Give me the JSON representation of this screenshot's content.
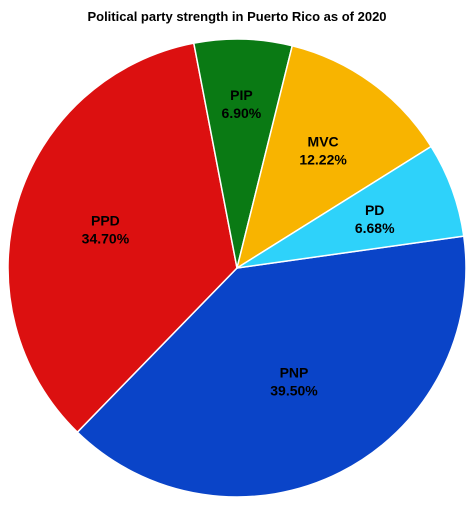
{
  "chart_data": {
    "type": "pie",
    "title": "Political party strength in Puerto Rico as of 2020",
    "slices": [
      {
        "name": "PNP",
        "value": 39.5,
        "value_label": "39.50%",
        "color": "#0a44c8"
      },
      {
        "name": "PPD",
        "value": 34.7,
        "value_label": "34.70%",
        "color": "#dc1010"
      },
      {
        "name": "PIP",
        "value": 6.9,
        "value_label": "6.90%",
        "color": "#0a7a14"
      },
      {
        "name": "MVC",
        "value": 12.22,
        "value_label": "12.22%",
        "color": "#f8b400"
      },
      {
        "name": "PD",
        "value": 6.68,
        "value_label": "6.68%",
        "color": "#2ed2fa"
      }
    ],
    "legend": "none"
  }
}
